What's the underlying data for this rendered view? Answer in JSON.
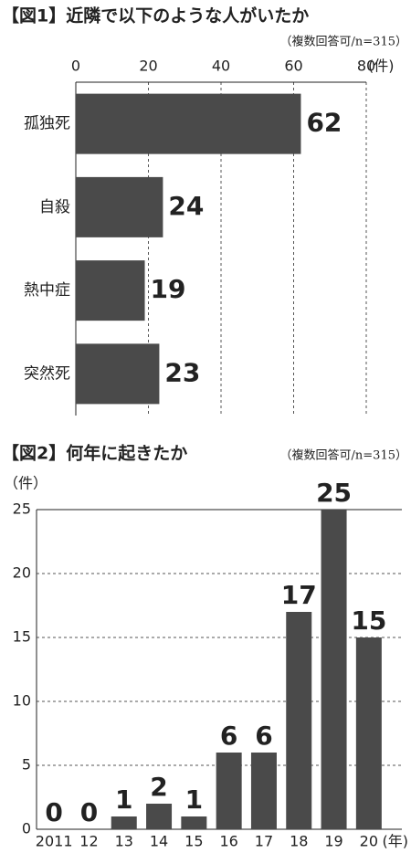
{
  "chart_data": [
    {
      "type": "hbar",
      "title": "【図1】近隣で以下のような人がいたか",
      "subtitle": "（複数回答可/n=315）",
      "unit": "(件)",
      "categories": [
        "孤独死",
        "自殺",
        "熱中症",
        "突然死"
      ],
      "values": [
        62,
        24,
        19,
        23
      ],
      "color": "#4a4a4a",
      "xlim": [
        0,
        80
      ],
      "xticks": [
        0,
        20,
        40,
        60,
        80
      ],
      "grid": true
    },
    {
      "type": "bar",
      "title": "【図2】何年に起きたか",
      "subtitle": "（複数回答可/n=315）",
      "y_unit": "（件）",
      "x_unit": "(年)",
      "categories": [
        "2011",
        "12",
        "13",
        "14",
        "15",
        "16",
        "17",
        "18",
        "19",
        "20"
      ],
      "values": [
        0,
        0,
        1,
        2,
        1,
        6,
        6,
        17,
        25,
        15
      ],
      "color": "#4a4a4a",
      "ylim": [
        0,
        25
      ],
      "yticks": [
        0,
        5,
        10,
        15,
        20,
        25
      ],
      "grid": true
    }
  ]
}
